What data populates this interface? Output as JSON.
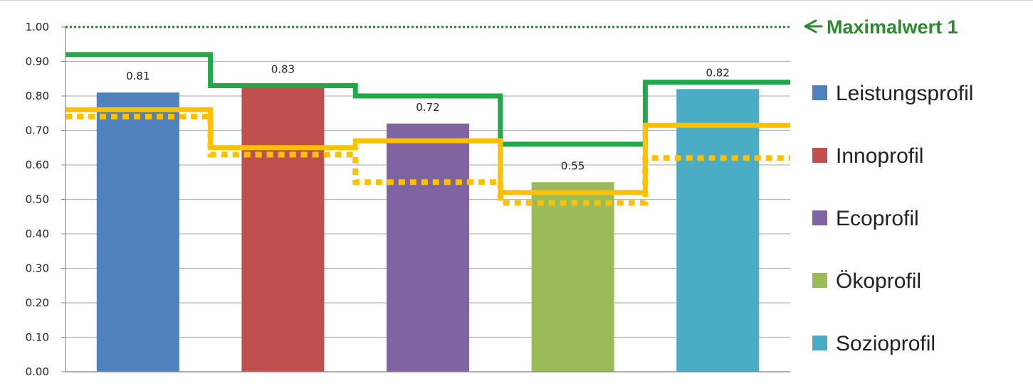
{
  "chart_data": {
    "type": "bar",
    "categories": [
      "Leistungsprofil",
      "Innoprofil",
      "Ecoprofil",
      "Ökoprofil",
      "Sozioprofil"
    ],
    "values": [
      0.81,
      0.83,
      0.72,
      0.55,
      0.82
    ],
    "data_labels": [
      "0.81",
      "0.83",
      "0.72",
      "0.55",
      "0.82"
    ],
    "colors": [
      "#4f81bd",
      "#c0504d",
      "#8064a2",
      "#9bbb59",
      "#4bacc6"
    ],
    "ylim": [
      0,
      1
    ],
    "yticks": [
      0,
      0.1,
      0.2,
      0.3,
      0.4,
      0.5,
      0.6,
      0.7,
      0.8,
      0.9,
      1.0
    ],
    "ytick_labels": [
      "0.00",
      "0.10",
      "0.20",
      "0.30",
      "0.40",
      "0.50",
      "0.60",
      "0.70",
      "0.80",
      "0.90",
      "1.00"
    ],
    "grid": true,
    "legend_position": "right",
    "legend": [
      "Leistungsprofil",
      "Innoprofil",
      "Ecoprofil",
      "Ökoprofil",
      "Sozioprofil"
    ],
    "step_lines": [
      {
        "style": "solid",
        "color": "#21a84a",
        "values": [
          0.92,
          0.83,
          0.8,
          0.66,
          0.84
        ]
      },
      {
        "style": "solid",
        "color": "#ffc000",
        "values": [
          0.76,
          0.65,
          0.67,
          0.52,
          0.715
        ]
      },
      {
        "style": "dotted",
        "color": "#ffc000",
        "values": [
          0.74,
          0.63,
          0.55,
          0.49,
          0.62
        ]
      }
    ],
    "max_line": {
      "value": 1.0,
      "color": "#2e7d32",
      "label": "Maximalwert 1"
    }
  }
}
